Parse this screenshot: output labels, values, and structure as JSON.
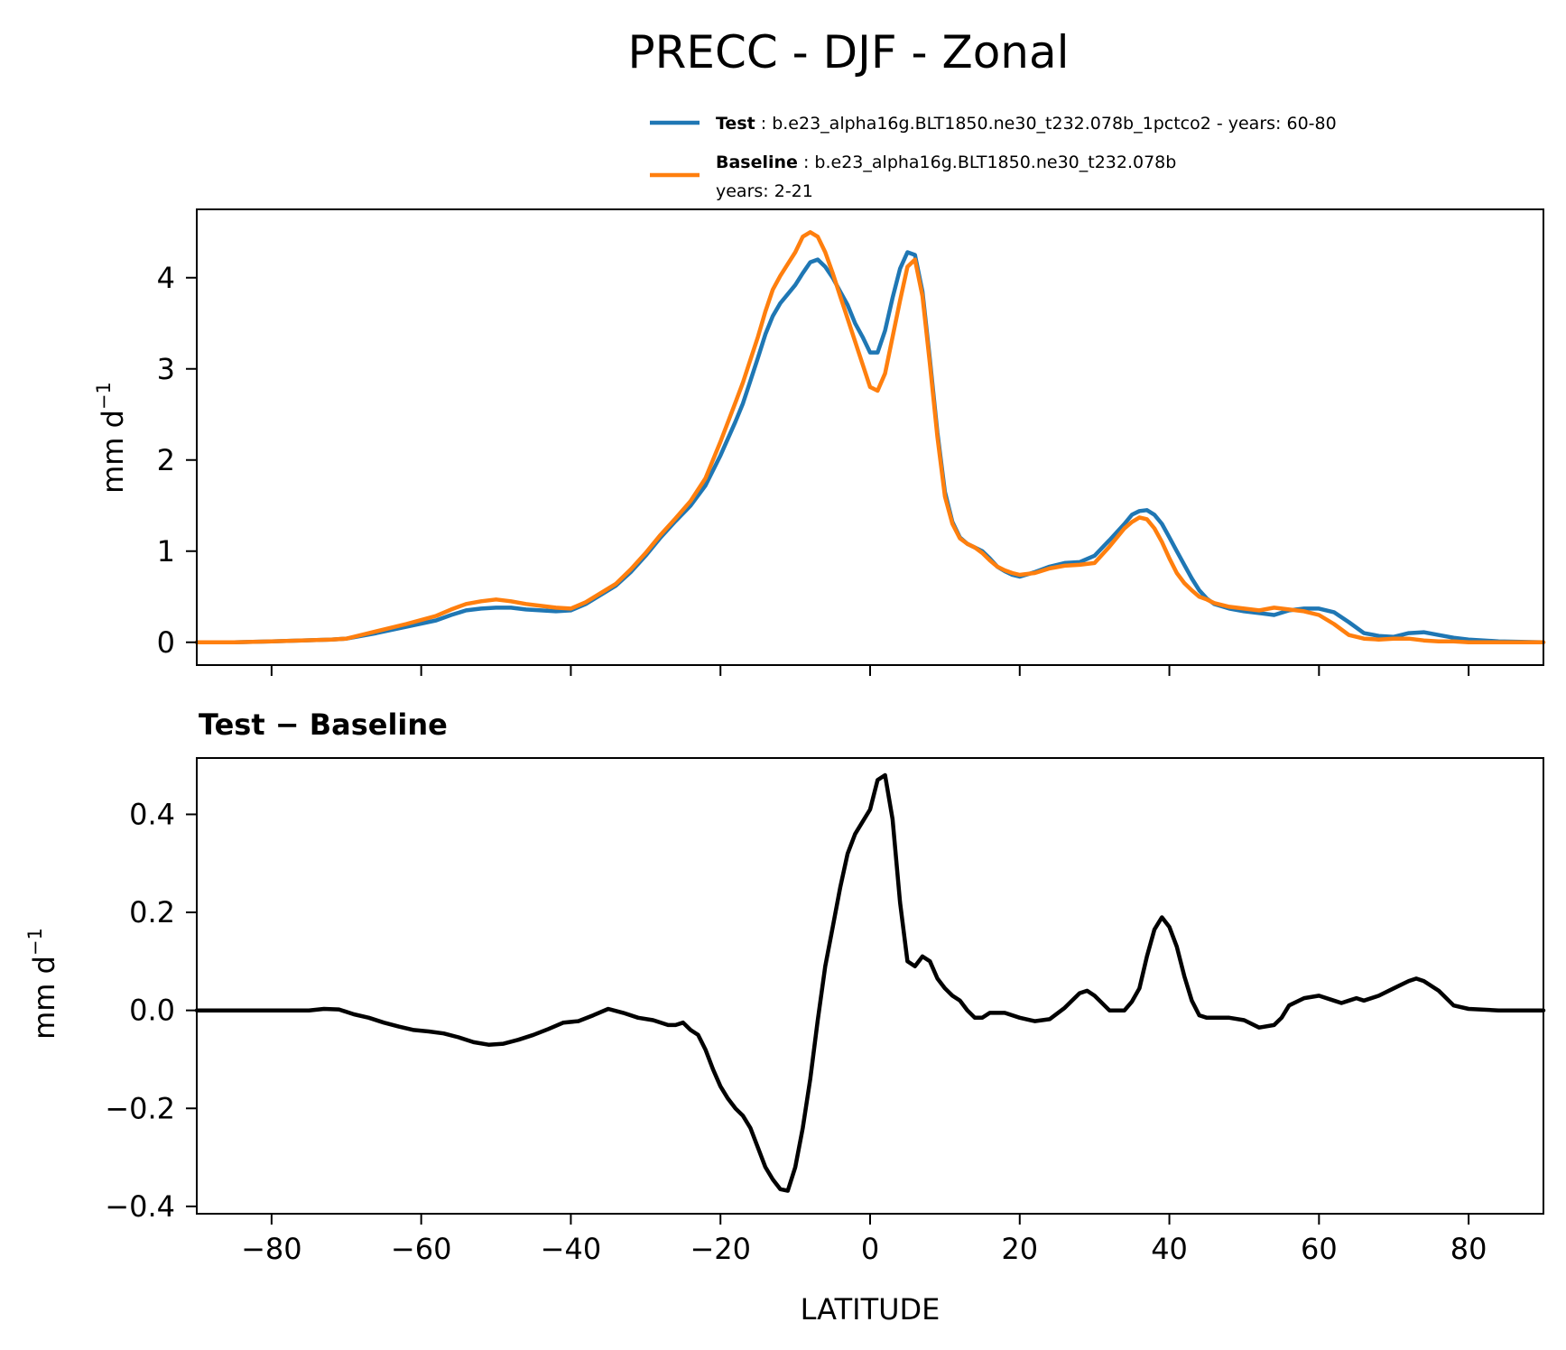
{
  "chart_data": [
    {
      "type": "line",
      "title": "PRECC - DJF - Zonal",
      "ylabel": "mm d",
      "ylabel_sup": "−1",
      "xlim": [
        -90,
        90
      ],
      "ylim": [
        -0.25,
        4.75
      ],
      "yticks": [
        0,
        1,
        2,
        3,
        4
      ],
      "yticklabels": [
        "0",
        "1",
        "2",
        "3",
        "4"
      ],
      "xticks": [
        -80,
        -60,
        -40,
        -20,
        0,
        20,
        40,
        60,
        80
      ],
      "legend": {
        "placement": "above",
        "entries": [
          {
            "series": 0,
            "bold": "Test",
            "rest": ": b.e23_alpha16g.BLT1850.ne30_t232.078b_1pctco2 - years: 60-80",
            "line2": ""
          },
          {
            "series": 1,
            "bold": "Baseline",
            "rest": ": b.e23_alpha16g.BLT1850.ne30_t232.078b",
            "line2": "years: 2-21"
          }
        ]
      },
      "series": [
        {
          "name": "Test",
          "color": "#1f77b4",
          "x": [
            -90,
            -85,
            -80,
            -76,
            -72,
            -70,
            -66,
            -62,
            -58,
            -56,
            -54,
            -52,
            -50,
            -48,
            -46,
            -44,
            -42,
            -40,
            -38,
            -36,
            -34,
            -32,
            -30,
            -28,
            -26,
            -24,
            -22,
            -20,
            -18,
            -17,
            -16,
            -15,
            -14,
            -13,
            -12,
            -11,
            -10,
            -9,
            -8,
            -7,
            -6,
            -5,
            -4,
            -3,
            -2,
            -1,
            0,
            1,
            2,
            3,
            4,
            5,
            6,
            7,
            8,
            9,
            10,
            11,
            12,
            13,
            14,
            15,
            16,
            17,
            18,
            19,
            20,
            22,
            24,
            26,
            28,
            30,
            32,
            34,
            35,
            36,
            37,
            38,
            39,
            40,
            41,
            42,
            43,
            44,
            45,
            46,
            48,
            50,
            52,
            54,
            56,
            58,
            60,
            62,
            64,
            66,
            68,
            70,
            72,
            74,
            76,
            78,
            80,
            84,
            90
          ],
          "y": [
            0,
            0,
            0.01,
            0.02,
            0.03,
            0.04,
            0.1,
            0.17,
            0.24,
            0.3,
            0.35,
            0.37,
            0.38,
            0.38,
            0.36,
            0.35,
            0.34,
            0.35,
            0.42,
            0.52,
            0.62,
            0.77,
            0.95,
            1.15,
            1.33,
            1.5,
            1.72,
            2.05,
            2.42,
            2.62,
            2.87,
            3.12,
            3.38,
            3.58,
            3.72,
            3.82,
            3.92,
            4.05,
            4.17,
            4.2,
            4.12,
            4.0,
            3.85,
            3.7,
            3.5,
            3.35,
            3.18,
            3.18,
            3.42,
            3.78,
            4.1,
            4.28,
            4.25,
            3.85,
            3.1,
            2.3,
            1.65,
            1.32,
            1.15,
            1.08,
            1.04,
            1.0,
            0.92,
            0.83,
            0.78,
            0.74,
            0.72,
            0.77,
            0.83,
            0.87,
            0.88,
            0.95,
            1.12,
            1.3,
            1.4,
            1.44,
            1.45,
            1.4,
            1.3,
            1.15,
            1.0,
            0.85,
            0.7,
            0.57,
            0.48,
            0.42,
            0.37,
            0.34,
            0.32,
            0.3,
            0.35,
            0.37,
            0.37,
            0.33,
            0.22,
            0.1,
            0.07,
            0.06,
            0.1,
            0.11,
            0.08,
            0.05,
            0.03,
            0.01,
            0
          ],
          "dash": ""
        },
        {
          "name": "Baseline",
          "color": "#ff7f0e",
          "x": [
            -90,
            -85,
            -80,
            -76,
            -72,
            -70,
            -66,
            -62,
            -58,
            -56,
            -54,
            -52,
            -50,
            -48,
            -46,
            -44,
            -42,
            -40,
            -38,
            -36,
            -34,
            -32,
            -30,
            -28,
            -26,
            -24,
            -22,
            -20,
            -18,
            -17,
            -16,
            -15,
            -14,
            -13,
            -12,
            -11,
            -10,
            -9,
            -8,
            -7,
            -6,
            -5,
            -4,
            -3,
            -2,
            -1,
            0,
            1,
            2,
            3,
            4,
            5,
            6,
            7,
            8,
            9,
            10,
            11,
            12,
            13,
            14,
            15,
            16,
            17,
            18,
            19,
            20,
            22,
            24,
            26,
            28,
            30,
            32,
            34,
            35,
            36,
            37,
            38,
            39,
            40,
            41,
            42,
            43,
            44,
            45,
            46,
            48,
            50,
            52,
            54,
            56,
            58,
            60,
            62,
            64,
            66,
            68,
            70,
            72,
            74,
            76,
            78,
            80,
            84,
            90
          ],
          "y": [
            0,
            0,
            0.01,
            0.02,
            0.03,
            0.04,
            0.12,
            0.2,
            0.29,
            0.36,
            0.42,
            0.45,
            0.47,
            0.45,
            0.42,
            0.4,
            0.38,
            0.37,
            0.44,
            0.54,
            0.64,
            0.8,
            0.98,
            1.18,
            1.36,
            1.55,
            1.8,
            2.2,
            2.63,
            2.85,
            3.1,
            3.35,
            3.63,
            3.87,
            4.02,
            4.15,
            4.28,
            4.45,
            4.5,
            4.45,
            4.28,
            4.05,
            3.8,
            3.55,
            3.3,
            3.05,
            2.8,
            2.76,
            2.95,
            3.35,
            3.75,
            4.12,
            4.2,
            3.8,
            3.05,
            2.25,
            1.6,
            1.3,
            1.14,
            1.08,
            1.04,
            0.98,
            0.9,
            0.83,
            0.79,
            0.76,
            0.74,
            0.76,
            0.81,
            0.84,
            0.85,
            0.87,
            1.05,
            1.25,
            1.32,
            1.37,
            1.35,
            1.25,
            1.1,
            0.92,
            0.76,
            0.65,
            0.57,
            0.5,
            0.47,
            0.43,
            0.39,
            0.37,
            0.35,
            0.38,
            0.36,
            0.34,
            0.3,
            0.2,
            0.08,
            0.04,
            0.03,
            0.04,
            0.04,
            0.02,
            0.01,
            0.01,
            0,
            0,
            0
          ],
          "dash": ""
        }
      ]
    },
    {
      "type": "line",
      "title": "Test − Baseline",
      "ylabel": "mm d",
      "ylabel_sup": "−1",
      "xlabel": "LATITUDE",
      "xlim": [
        -90,
        90
      ],
      "ylim": [
        -0.415,
        0.515
      ],
      "yticks": [
        -0.4,
        -0.2,
        0.0,
        0.2,
        0.4
      ],
      "yticklabels": [
        "−0.4",
        "−0.2",
        "0.0",
        "0.2",
        "0.4"
      ],
      "xticks": [
        -80,
        -60,
        -40,
        -20,
        0,
        20,
        40,
        60,
        80
      ],
      "xticklabels": [
        "−80",
        "−60",
        "−40",
        "−20",
        "0",
        "20",
        "40",
        "60",
        "80"
      ],
      "series": [
        {
          "name": "Test − Baseline",
          "color": "#000000",
          "x": [
            -90,
            -85,
            -80,
            -77,
            -75,
            -73,
            -71,
            -69,
            -67,
            -65,
            -63,
            -61,
            -59,
            -57,
            -55,
            -53,
            -51,
            -49,
            -47,
            -45,
            -43,
            -41,
            -39,
            -37,
            -35,
            -33,
            -31,
            -29,
            -27,
            -26,
            -25,
            -24,
            -23,
            -22,
            -21,
            -20,
            -19,
            -18,
            -17,
            -16,
            -15,
            -14,
            -13,
            -12,
            -11,
            -10,
            -9,
            -8,
            -7,
            -6,
            -5,
            -4,
            -3,
            -2,
            -1,
            0,
            1,
            2,
            3,
            4,
            5,
            6,
            7,
            8,
            9,
            10,
            11,
            12,
            13,
            14,
            15,
            16,
            18,
            20,
            22,
            24,
            26,
            28,
            29,
            30,
            32,
            34,
            35,
            36,
            37,
            38,
            39,
            40,
            41,
            42,
            43,
            44,
            45,
            46,
            48,
            50,
            52,
            54,
            55,
            56,
            58,
            60,
            62,
            63,
            64,
            65,
            66,
            68,
            70,
            72,
            73,
            74,
            76,
            78,
            80,
            84,
            90
          ],
          "y": [
            0,
            0,
            0,
            0,
            0,
            0.003,
            0.002,
            -0.008,
            -0.015,
            -0.025,
            -0.033,
            -0.04,
            -0.043,
            -0.047,
            -0.055,
            -0.065,
            -0.07,
            -0.068,
            -0.06,
            -0.05,
            -0.038,
            -0.025,
            -0.022,
            -0.01,
            0.003,
            -0.005,
            -0.015,
            -0.02,
            -0.03,
            -0.03,
            -0.025,
            -0.04,
            -0.05,
            -0.08,
            -0.12,
            -0.155,
            -0.18,
            -0.2,
            -0.215,
            -0.24,
            -0.28,
            -0.32,
            -0.345,
            -0.365,
            -0.368,
            -0.32,
            -0.24,
            -0.14,
            -0.02,
            0.09,
            0.17,
            0.25,
            0.32,
            0.36,
            0.385,
            0.41,
            0.47,
            0.48,
            0.39,
            0.22,
            0.1,
            0.09,
            0.11,
            0.1,
            0.065,
            0.045,
            0.03,
            0.02,
            0.0,
            -0.015,
            -0.015,
            -0.005,
            -0.005,
            -0.015,
            -0.022,
            -0.018,
            0.005,
            0.035,
            0.04,
            0.03,
            0.0,
            0.0,
            0.018,
            0.045,
            0.11,
            0.165,
            0.19,
            0.17,
            0.13,
            0.07,
            0.02,
            -0.01,
            -0.015,
            -0.015,
            -0.015,
            -0.02,
            -0.035,
            -0.03,
            -0.015,
            0.01,
            0.025,
            0.03,
            0.02,
            0.015,
            0.02,
            0.025,
            0.02,
            0.03,
            0.045,
            0.06,
            0.065,
            0.06,
            0.04,
            0.01,
            0.003,
            0,
            0
          ],
          "dash": ""
        }
      ]
    }
  ]
}
